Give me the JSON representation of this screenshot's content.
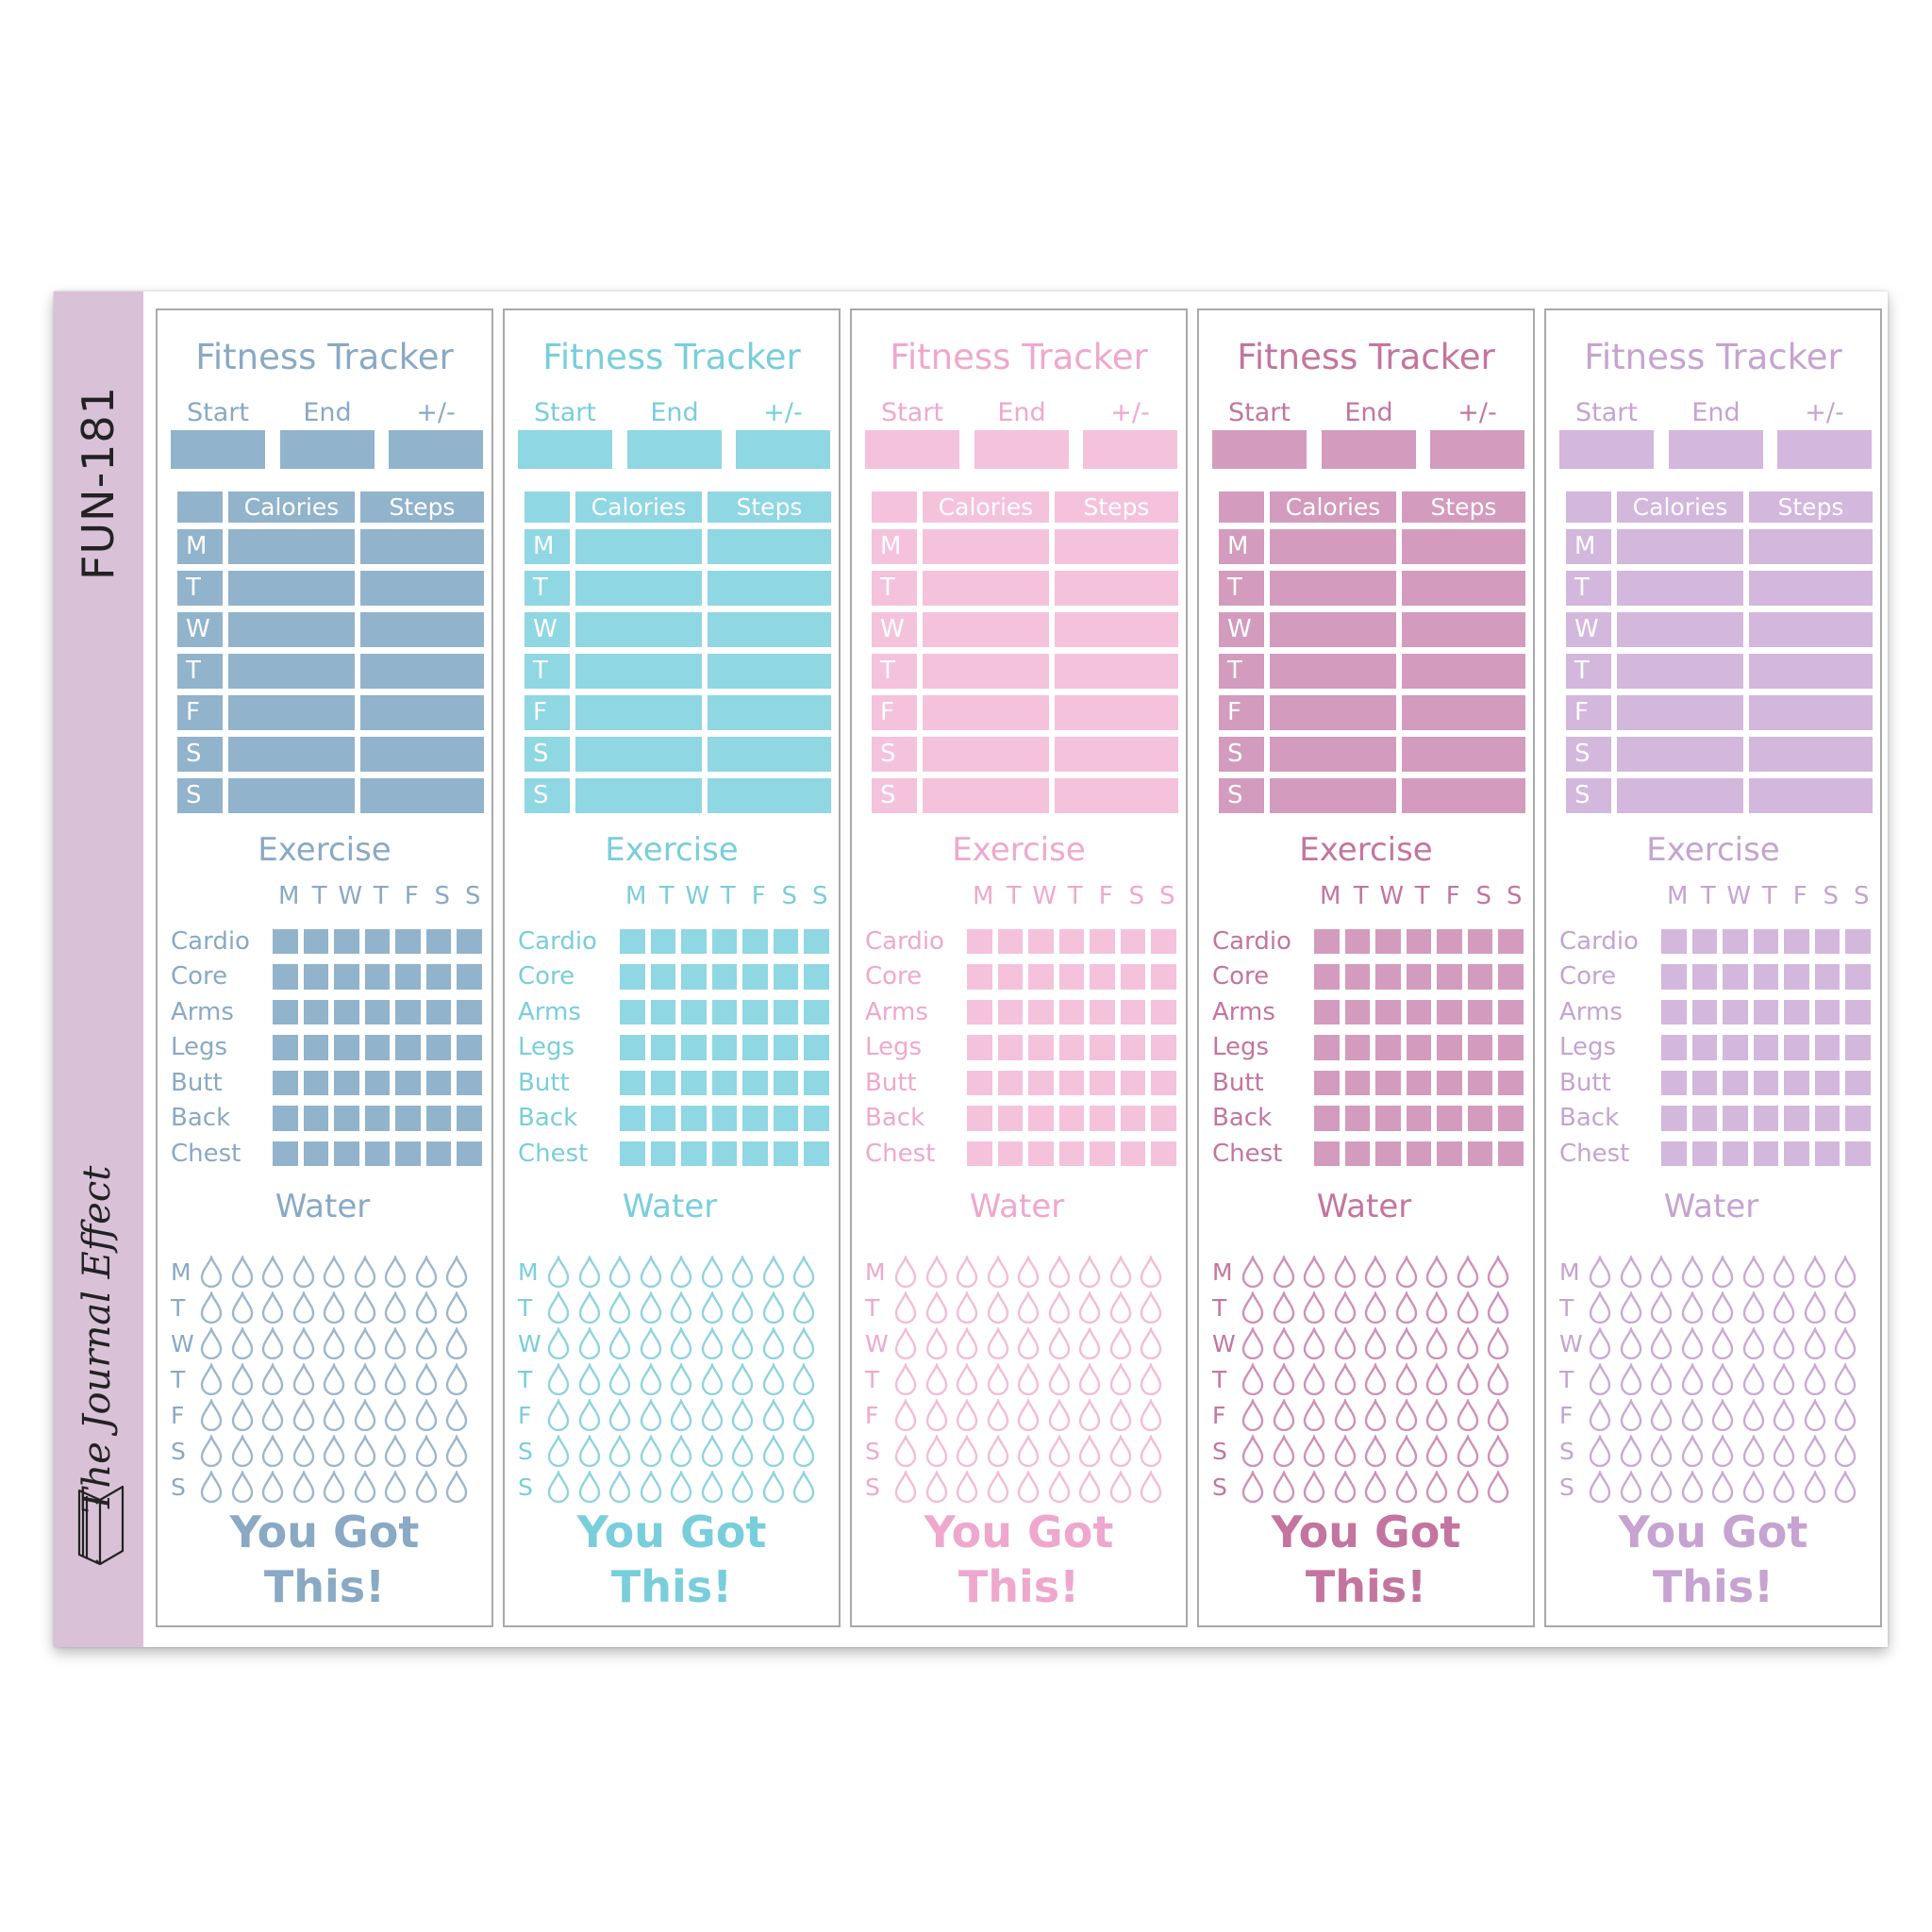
{
  "sheet": {
    "code": "FUN-181",
    "brand": "The Journal Effect"
  },
  "panel": {
    "title": "Fitness Tracker",
    "start": "Start",
    "end": "End",
    "plus_minus": "+/-",
    "calories": "Calories",
    "steps": "Steps",
    "days": [
      "M",
      "T",
      "W",
      "T",
      "F",
      "S",
      "S"
    ],
    "exercise_title": "Exercise",
    "exercises": [
      "Cardio",
      "Core",
      "Arms",
      "Legs",
      "Butt",
      "Back",
      "Chest"
    ],
    "water_title": "Water",
    "water_drops_per_day": 9,
    "slogan_line1": "You Got",
    "slogan_line2": "This!"
  },
  "colors": [
    {
      "name": "dusty-blue",
      "text": "#89a9c4",
      "fill": "#91b3cc"
    },
    {
      "name": "aqua",
      "text": "#79cedb",
      "fill": "#8fd7e2"
    },
    {
      "name": "light-pink",
      "text": "#efa8cd",
      "fill": "#f5c2dc"
    },
    {
      "name": "mauve",
      "text": "#c3759f",
      "fill": "#d39bbd"
    },
    {
      "name": "lavender",
      "text": "#c6a3d0",
      "fill": "#d3b7dd"
    }
  ]
}
